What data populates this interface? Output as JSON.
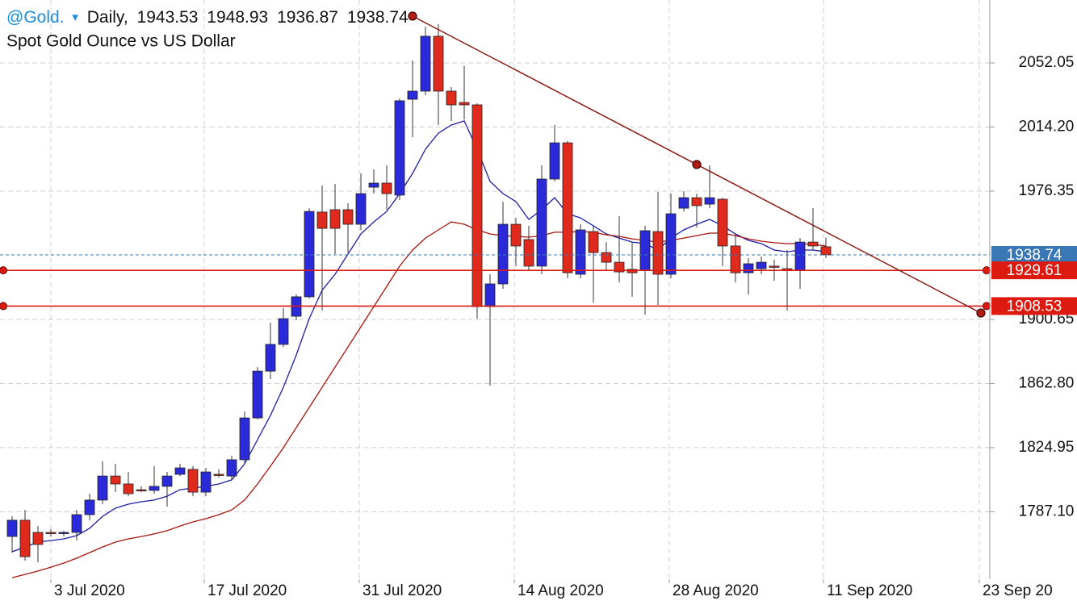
{
  "chart_data": {
    "type": "candlestick",
    "symbol": "@Gold.",
    "menu_icon": "▾",
    "interval": "Daily,",
    "subtitle": "Spot Gold Ounce vs US Dollar",
    "categories": [
      null,
      null,
      null,
      null,
      null,
      null,
      null,
      null,
      null,
      null,
      null,
      null,
      null,
      null,
      null,
      null,
      null,
      null,
      null,
      null,
      null,
      null,
      null,
      null,
      null,
      null,
      null,
      null,
      null,
      null,
      null,
      null,
      null,
      null,
      null,
      null,
      null,
      null,
      null,
      null,
      null,
      null,
      null,
      null,
      null,
      null,
      null,
      null,
      null,
      null,
      null,
      null,
      null,
      null,
      null,
      null,
      null,
      null,
      null,
      null,
      null,
      null,
      null,
      null
    ],
    "open": [
      1772.5,
      1782.1,
      1774.9,
      1774.9,
      1774.4,
      1774.9,
      1785.4,
      1794.0,
      1808.2,
      1803.5,
      1800.1,
      1799.7,
      1802.1,
      1809.2,
      1812.1,
      1798.7,
      1809.2,
      1808.2,
      1817.8,
      1842.5,
      1870.1,
      1885.9,
      1902.5,
      1914.0,
      1964.0,
      1965.4,
      1965.4,
      1956.8,
      1978.7,
      1981.1,
      1974.0,
      2030.6,
      2035.4,
      2067.8,
      2035.4,
      2028.7,
      2027.3,
      1908.2,
      1921.6,
      1956.8,
      1947.8,
      1932.1,
      1983.5,
      2004.9,
      1927.3,
      1952.5,
      1940.1,
      1934.4,
      1930.2,
      1929.7,
      1952.5,
      1927.3,
      1966.3,
      1972.5,
      1968.7,
      1971.6,
      1944.0,
      1928.2,
      1930.6,
      1932.1,
      1930.6,
      1929.7,
      1946.3,
      1943.53
    ],
    "high": [
      1784.4,
      1788.2,
      1778.7,
      1776.8,
      1775.9,
      1788.2,
      1797.8,
      1816.8,
      1815.4,
      1810.6,
      1802.1,
      1814.0,
      1810.6,
      1815.4,
      1814.0,
      1813.0,
      1812.1,
      1820.1,
      1846.3,
      1872.5,
      1898.7,
      1907.3,
      1915.4,
      1966.3,
      1979.7,
      1980.6,
      1969.2,
      1986.8,
      1989.2,
      1991.6,
      2031.1,
      2053.5,
      2073.5,
      2074.9,
      2037.8,
      2050.2,
      2028.2,
      1927.3,
      1970.2,
      1960.6,
      1955.9,
      1991.6,
      2015.4,
      2005.9,
      1956.8,
      1955.9,
      1946.3,
      1961.6,
      1946.3,
      1955.9,
      1975.9,
      1974.9,
      1976.3,
      1974.9,
      1991.6,
      1972.5,
      1951.1,
      1936.8,
      1937.8,
      1935.9,
      1941.6,
      1948.7,
      1966.3,
      1948.93
    ],
    "low": [
      1763.0,
      1758.2,
      1757.3,
      1772.5,
      1772.5,
      1770.1,
      1782.1,
      1791.6,
      1798.7,
      1796.3,
      1798.7,
      1797.8,
      1790.1,
      1808.2,
      1796.3,
      1796.3,
      1807.3,
      1805.9,
      1815.4,
      1841.6,
      1865.4,
      1884.4,
      1900.1,
      1913.0,
      1905.9,
      1939.2,
      1940.1,
      1953.5,
      1974.9,
      1965.4,
      1971.1,
      2008.2,
      2033.0,
      2015.4,
      2017.8,
      2018.7,
      1901.1,
      1861.6,
      1918.7,
      1932.1,
      1929.7,
      1927.3,
      1982.1,
      1924.9,
      1924.9,
      1910.6,
      1929.7,
      1922.5,
      1914.0,
      1903.5,
      1909.2,
      1924.9,
      1964.4,
      1954.9,
      1966.3,
      1932.1,
      1922.5,
      1915.4,
      1927.3,
      1923.5,
      1905.9,
      1918.7,
      1941.6,
      1936.87
    ],
    "close": [
      1782.1,
      1760.6,
      1767.8,
      1774.4,
      1774.9,
      1785.4,
      1794.0,
      1808.2,
      1803.5,
      1797.8,
      1799.7,
      1802.1,
      1808.2,
      1813.0,
      1798.7,
      1810.6,
      1808.7,
      1817.8,
      1842.5,
      1870.1,
      1885.9,
      1901.1,
      1914.0,
      1964.4,
      1954.4,
      1954.4,
      1956.8,
      1974.9,
      1981.1,
      1974.9,
      2029.7,
      2035.4,
      2067.8,
      2035.4,
      2027.3,
      2027.3,
      1908.2,
      1921.6,
      1956.8,
      1944.0,
      1932.1,
      1983.5,
      2004.9,
      1928.2,
      1953.5,
      1940.1,
      1934.4,
      1928.7,
      1928.2,
      1953.0,
      1927.3,
      1963.0,
      1972.5,
      1967.8,
      1972.5,
      1944.0,
      1928.2,
      1933.5,
      1934.4,
      1931.6,
      1929.7,
      1946.3,
      1944.0,
      1938.74
    ],
    "up_color": "#2a2ad8",
    "down_color": "#e02a1e",
    "lines": [
      {
        "color": "#1c1ca8",
        "values": [
          1763.5,
          1766.3,
          1769.2,
          1770.1,
          1771.1,
          1773.0,
          1777.3,
          1784.4,
          1789.2,
          1791.6,
          1793.0,
          1794.0,
          1796.3,
          1800.1,
          1801.1,
          1802.1,
          1803.5,
          1805.9,
          1815.4,
          1829.7,
          1844.0,
          1860.6,
          1879.7,
          1901.1,
          1917.8,
          1927.3,
          1939.2,
          1951.1,
          1958.2,
          1964.4,
          1974.9,
          1986.8,
          2001.1,
          2010.6,
          2015.4,
          2017.8,
          2001.1,
          1982.1,
          1974.9,
          1970.2,
          1959.7,
          1965.4,
          1972.5,
          1963.0,
          1960.6,
          1955.9,
          1951.1,
          1948.7,
          1946.3,
          1945.4,
          1941.6,
          1948.7,
          1953.5,
          1956.8,
          1959.7,
          1955.9,
          1951.1,
          1947.3,
          1945.4,
          1941.6,
          1940.6,
          1941.6,
          1941.6,
          1940.6
        ]
      },
      {
        "color": "#a8140c",
        "values": [
          1748.2,
          1750.1,
          1752.1,
          1754.4,
          1756.8,
          1759.7,
          1763.0,
          1766.3,
          1769.2,
          1771.1,
          1772.5,
          1774.0,
          1775.9,
          1778.7,
          1781.1,
          1783.0,
          1785.4,
          1788.2,
          1794.0,
          1803.5,
          1814.0,
          1824.9,
          1836.8,
          1848.7,
          1860.6,
          1872.5,
          1884.4,
          1896.3,
          1908.2,
          1920.1,
          1932.1,
          1941.6,
          1948.7,
          1953.5,
          1958.2,
          1956.8,
          1953.5,
          1951.1,
          1950.1,
          1949.7,
          1949.2,
          1950.1,
          1952.1,
          1952.1,
          1952.5,
          1952.1,
          1950.6,
          1949.7,
          1948.2,
          1947.3,
          1946.3,
          1947.3,
          1948.7,
          1950.1,
          1951.6,
          1951.6,
          1950.1,
          1948.2,
          1946.8,
          1945.9,
          1945.4,
          1945.4,
          1944.9,
          1944.0
        ]
      }
    ],
    "trendline": {
      "color": "#8b1a12",
      "x": [
        31,
        53,
        75
      ],
      "y": [
        2079.7,
        1992.1,
        1904.4
      ]
    },
    "levels": [
      {
        "value": 1938.74,
        "color": "#3a78b5",
        "style": "dashed"
      },
      {
        "value": 1929.61,
        "color": "#dd1a10",
        "style": "solid"
      },
      {
        "value": 1908.53,
        "color": "#dd1a10",
        "style": "solid"
      }
    ],
    "xlim": [
      -0.9375,
      75.6875
    ],
    "ylim": [
      1747.3,
      2089.2
    ],
    "yticks": [
      {
        "value": 2052.05,
        "label": "2052.05"
      },
      {
        "value": 2014.2,
        "label": "2014.20"
      },
      {
        "value": 1976.35,
        "label": "1976.35"
      },
      {
        "value": 1900.65,
        "label": "1900.65"
      },
      {
        "value": 1862.8,
        "label": "1862.80"
      },
      {
        "value": 1824.95,
        "label": "1824.95"
      },
      {
        "value": 1787.1,
        "label": "1787.10"
      }
    ],
    "xticks": [
      {
        "value": 3,
        "label": "3 Jul 2020"
      },
      {
        "value": 14.875,
        "label": "17 Jul 2020"
      },
      {
        "value": 26.875,
        "label": "31 Jul 2020"
      },
      {
        "value": 38.875,
        "label": "14 Aug 2020"
      },
      {
        "value": 50.875,
        "label": "28 Aug 2020"
      },
      {
        "value": 62.8125,
        "label": "11 Sep 2020"
      },
      {
        "value": 74.875,
        "label": "23 Sep 20"
      }
    ],
    "grid": true
  }
}
